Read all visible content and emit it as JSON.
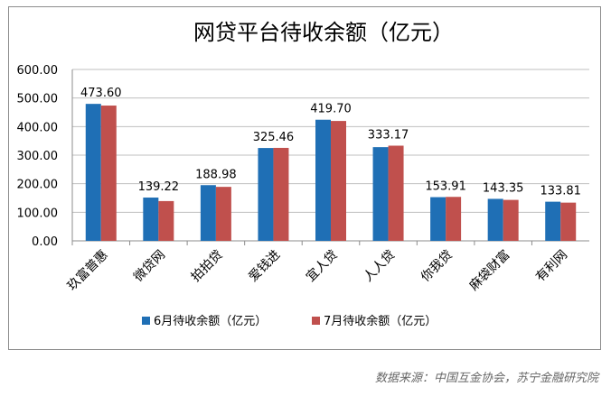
{
  "chart_data": {
    "type": "bar",
    "title": "网贷平台待收余额（亿元）",
    "categories": [
      "玖富普惠",
      "微贷网",
      "拍拍贷",
      "爱钱进",
      "宜人贷",
      "人人贷",
      "你我贷",
      "麻袋财富",
      "有利网"
    ],
    "series": [
      {
        "name": "6月待收余额（亿元）",
        "color": "#1F6FB5",
        "values": [
          479.5,
          151.5,
          195.0,
          325.0,
          424.0,
          328.0,
          153.0,
          147.0,
          137.0
        ]
      },
      {
        "name": "7月待收余额（亿元）",
        "color": "#C0504D",
        "values": [
          473.6,
          139.22,
          188.98,
          325.46,
          419.7,
          333.17,
          153.91,
          143.35,
          133.81
        ]
      }
    ],
    "data_labels": [
      "473.60",
      "139.22",
      "188.98",
      "325.46",
      "419.70",
      "333.17",
      "153.91",
      "143.35",
      "133.81"
    ],
    "y_ticks": [
      "0.00",
      "100.00",
      "200.00",
      "300.00",
      "400.00",
      "500.00",
      "600.00"
    ],
    "ylim": [
      0,
      600
    ],
    "grid": true,
    "legend_position": "bottom"
  },
  "source_note": "数据来源：中国互金协会，苏宁金融研究院"
}
